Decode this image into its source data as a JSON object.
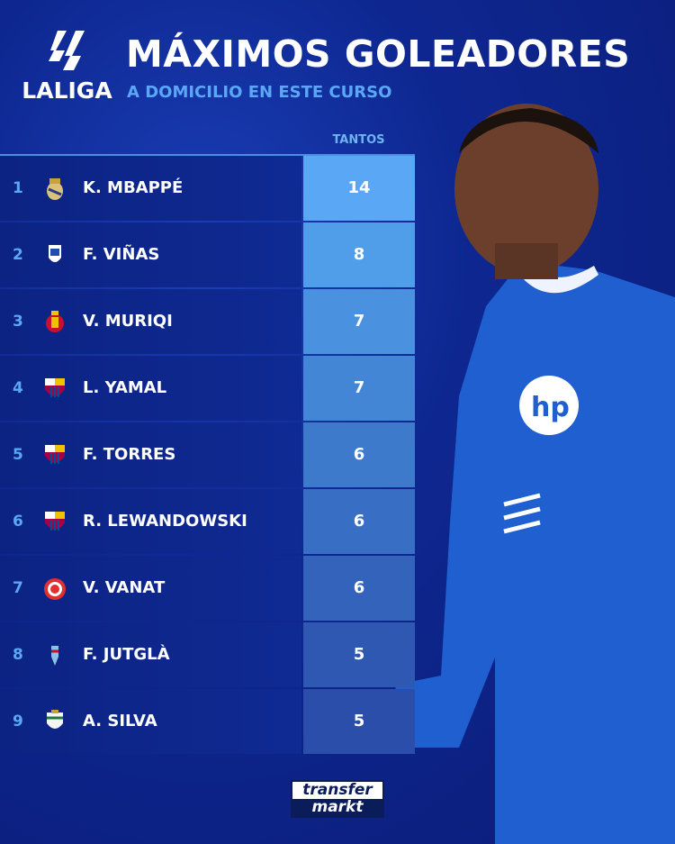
{
  "header": {
    "logo_text": "LALIGA",
    "title": "MÁXIMOS GOLEADORES",
    "subtitle": "A DOMICILIO EN ESTE CURSO"
  },
  "table": {
    "column_header": "TANTOS",
    "rows": [
      {
        "rank": "1",
        "club": "real-madrid-crest",
        "name": "K. MBAPPÉ",
        "goals": "14",
        "color": "#5aa8f5"
      },
      {
        "rank": "2",
        "club": "real-oviedo-crest",
        "name": "F. VIÑAS",
        "goals": "8",
        "color": "#509de9"
      },
      {
        "rank": "3",
        "club": "mallorca-crest",
        "name": "V. MURIQI",
        "goals": "7",
        "color": "#4a92e0"
      },
      {
        "rank": "4",
        "club": "barcelona-crest",
        "name": "L. YAMAL",
        "goals": "7",
        "color": "#4486d6"
      },
      {
        "rank": "5",
        "club": "barcelona-crest",
        "name": "F. TORRES",
        "goals": "6",
        "color": "#3e7acc"
      },
      {
        "rank": "6",
        "club": "barcelona-crest",
        "name": "R. LEWANDOWSKI",
        "goals": "6",
        "color": "#386ec4"
      },
      {
        "rank": "7",
        "club": "girona-crest",
        "name": "V. VANAT",
        "goals": "6",
        "color": "#3363bb"
      },
      {
        "rank": "8",
        "club": "celta-crest",
        "name": "F. JUTGLÀ",
        "goals": "5",
        "color": "#2e58b2"
      },
      {
        "rank": "9",
        "club": "elche-crest",
        "name": "A. SILVA",
        "goals": "5",
        "color": "#2a4ea9"
      }
    ]
  },
  "footer": {
    "brand_line1": "transfer",
    "brand_line2": "markt"
  }
}
